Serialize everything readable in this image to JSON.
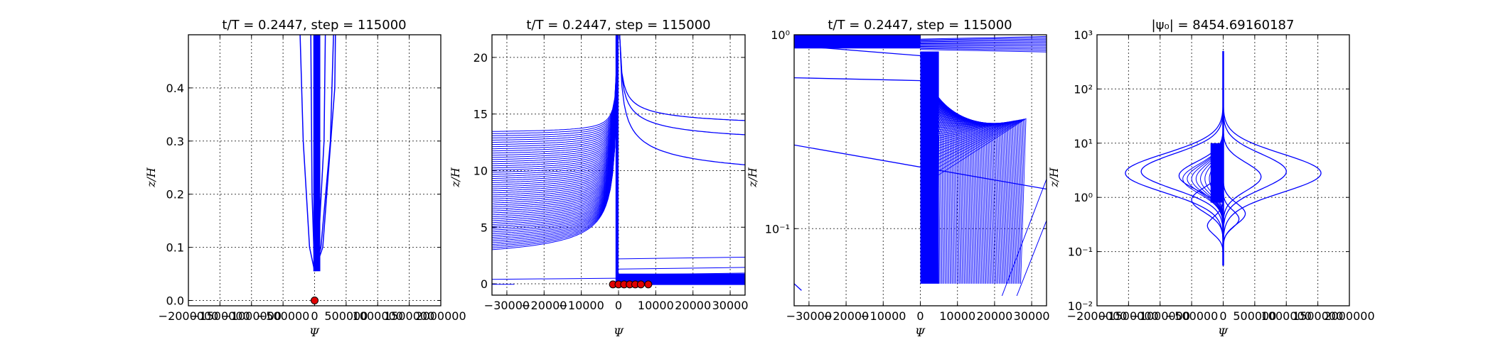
{
  "chart_data": [
    {
      "type": "line",
      "title": "t/T = 0.2447, step = 115000",
      "xlabel": "Ψ",
      "ylabel": "z/H",
      "xlim": [
        -2000000,
        2000000
      ],
      "ylim": [
        -0.01,
        0.5
      ],
      "xticks": [
        "−2000000",
        "−1500000",
        "−1000000",
        "−500000",
        "0",
        "500000",
        "1000000",
        "1500000",
        "2000000"
      ],
      "yticks": [
        "0.0",
        "0.1",
        "0.2",
        "0.3",
        "0.4"
      ],
      "grid": true,
      "line_color": "#0000ff",
      "marker_color": "#e00000",
      "series": [
        {
          "values": [
            [
              0,
              0.055
            ],
            [
              -80000,
              0.1
            ],
            [
              -180000,
              0.3
            ],
            [
              -230000,
              0.5
            ]
          ]
        },
        {
          "values": [
            [
              0,
              0.055
            ],
            [
              100000,
              0.1
            ],
            [
              250000,
              0.3
            ],
            [
              300000,
              0.5
            ]
          ]
        },
        {
          "values": [
            [
              0,
              0.055
            ],
            [
              130000,
              0.1
            ],
            [
              320000,
              0.4
            ],
            [
              330000,
              0.5
            ]
          ]
        },
        {
          "values": [
            [
              0,
              0.055
            ],
            [
              60000,
              0.1
            ],
            [
              150000,
              0.3
            ],
            [
              170000,
              0.5
            ]
          ]
        },
        {
          "values": [
            [
              0,
              0.055
            ],
            [
              -40000,
              0.2
            ],
            [
              -60000,
              0.5
            ]
          ]
        }
      ],
      "markers": [
        [
          0,
          0.0
        ]
      ]
    },
    {
      "type": "line",
      "title": "t/T = 0.2447, step = 115000",
      "xlabel": "Ψ",
      "ylabel": "z/H",
      "xlim": [
        -34000,
        34000
      ],
      "ylim": [
        -1,
        22
      ],
      "xticks": [
        "−30000",
        "−20000",
        "−10000",
        "0",
        "10000",
        "20000",
        "30000"
      ],
      "yticks": [
        "0",
        "5",
        "10",
        "15",
        "20"
      ],
      "grid": true,
      "line_color": "#0000ff",
      "marker_color": "#e00000",
      "markers": [
        [
          -1500,
          -0.05
        ],
        [
          0,
          -0.05
        ],
        [
          1500,
          -0.05
        ],
        [
          3000,
          -0.05
        ],
        [
          4500,
          -0.05
        ],
        [
          6000,
          -0.05
        ],
        [
          8000,
          -0.05
        ]
      ]
    },
    {
      "type": "line",
      "title": "t/T = 0.2447, step = 115000",
      "xlabel": "Ψ",
      "ylabel": "z/H",
      "xlim": [
        -34000,
        34000
      ],
      "ylim": [
        0.04,
        1.0
      ],
      "yscale": "log",
      "xticks": [
        "−30000",
        "−20000",
        "−10000",
        "0",
        "10000",
        "20000",
        "30000"
      ],
      "yticks": [
        "10⁻¹",
        "10⁰"
      ],
      "grid": true,
      "line_color": "#0000ff"
    },
    {
      "type": "line",
      "title": "|ψ₀| = 8454.69160187",
      "xlabel": "Ψ",
      "ylabel": "z/H",
      "xlim": [
        -2000000,
        2000000
      ],
      "ylim": [
        0.01,
        1000
      ],
      "yscale": "log",
      "xticks": [
        "−2000000",
        "−1500000",
        "−1000000",
        "−500000",
        "0",
        "500000",
        "1000000",
        "1500000",
        "2000000"
      ],
      "yticks": [
        "10⁻²",
        "10⁻¹",
        "10⁰",
        "10¹",
        "10²",
        "10³"
      ],
      "grid": true,
      "line_color": "#0000ff"
    }
  ]
}
